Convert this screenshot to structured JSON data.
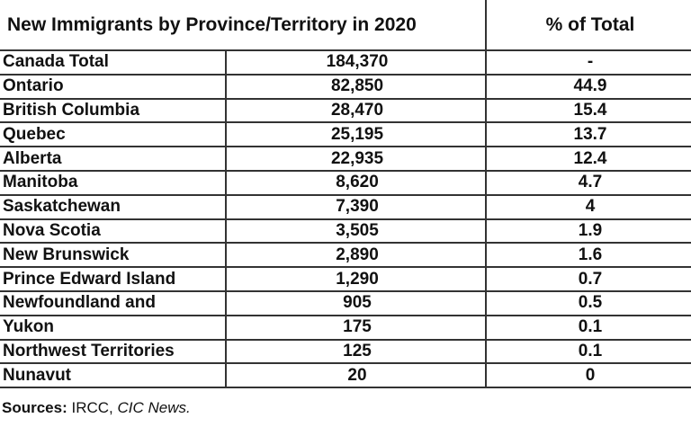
{
  "table": {
    "headers": {
      "title": "New Immigrants by Province/Territory in 2020",
      "percent": "% of Total"
    },
    "rows": [
      {
        "region": "Canada Total",
        "count": "184,370",
        "pct": "-"
      },
      {
        "region": "Ontario",
        "count": "82,850",
        "pct": "44.9"
      },
      {
        "region": "British Columbia",
        "count": "28,470",
        "pct": "15.4"
      },
      {
        "region": "Quebec",
        "count": "25,195",
        "pct": "13.7"
      },
      {
        "region": "Alberta",
        "count": "22,935",
        "pct": "12.4"
      },
      {
        "region": "Manitoba",
        "count": "8,620",
        "pct": "4.7"
      },
      {
        "region": "Saskatchewan",
        "count": "7,390",
        "pct": "4"
      },
      {
        "region": "Nova Scotia",
        "count": "3,505",
        "pct": "1.9"
      },
      {
        "region": "New Brunswick",
        "count": "2,890",
        "pct": "1.6"
      },
      {
        "region": "Prince Edward Island",
        "count": "1,290",
        "pct": "0.7"
      },
      {
        "region": "Newfoundland and",
        "count": "905",
        "pct": "0.5"
      },
      {
        "region": "Yukon",
        "count": "175",
        "pct": "0.1"
      },
      {
        "region": "Northwest Territories",
        "count": "125",
        "pct": "0.1"
      },
      {
        "region": "Nunavut",
        "count": "20",
        "pct": "0"
      }
    ]
  },
  "sources": {
    "label": "Sources:",
    "plain": " IRCC, ",
    "italic": "CIC News."
  }
}
